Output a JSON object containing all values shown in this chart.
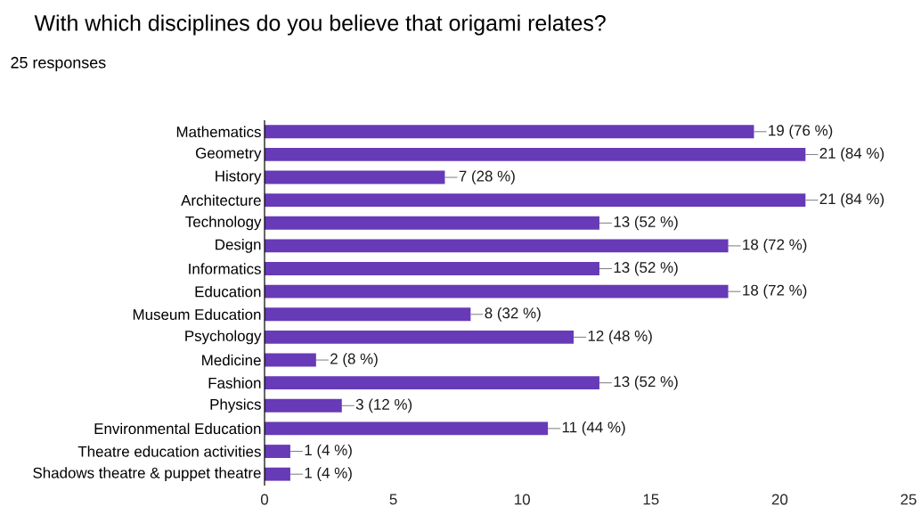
{
  "chart_data": {
    "type": "bar",
    "orientation": "horizontal",
    "title": "With which disciplines do you believe that origami relates?",
    "subtitle": "25 responses",
    "categories": [
      "Mathematics",
      "Geometry",
      "History",
      "Architecture",
      "Technology",
      "Design",
      "Informatics",
      "Education",
      "Museum Education",
      "Psychology",
      "Medicine",
      "Fashion",
      "Physics",
      "Environmental Education",
      "Theatre education activities",
      "Shadows theatre & puppet theatre"
    ],
    "values": [
      19,
      21,
      7,
      21,
      13,
      18,
      13,
      18,
      8,
      12,
      2,
      13,
      3,
      11,
      1,
      1
    ],
    "value_labels": [
      "19 (76 %)",
      "21 (84 %)",
      "7 (28 %)",
      "21 (84 %)",
      "13 (52 %)",
      "18 (72 %)",
      "13 (52 %)",
      "18 (72 %)",
      "8 (32 %)",
      "12 (48 %)",
      "2 (8 %)",
      "13 (52 %)",
      "3 (12 %)",
      "11 (44 %)",
      "1 (4 %)",
      "1 (4 %)"
    ],
    "color": "#673ab7",
    "xlim": [
      0,
      25
    ],
    "xticks": [
      0,
      5,
      10,
      15,
      20,
      25
    ]
  }
}
